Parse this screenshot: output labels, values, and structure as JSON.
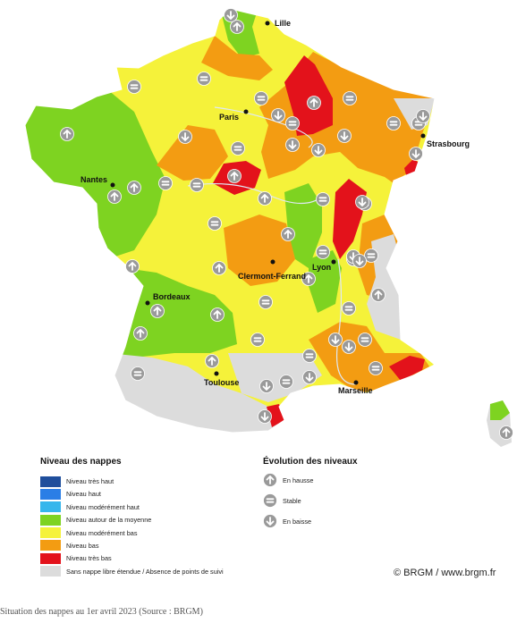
{
  "colors": {
    "tres_haut": "#1f4e9c",
    "haut": "#2b7ee6",
    "moderement_haut": "#36b6ec",
    "moyenne": "#7ed321",
    "moderement_bas": "#f5f23a",
    "bas": "#f39c12",
    "tres_bas": "#e3121b",
    "sans_nappe": "#dcdcdc",
    "arrow": "#9a9a9a"
  },
  "cities": {
    "lille": "Lille",
    "paris": "Paris",
    "strasbourg": "Strasbourg",
    "nantes": "Nantes",
    "clermont": "Clermont-Ferrand",
    "lyon": "Lyon",
    "bordeaux": "Bordeaux",
    "toulouse": "Toulouse",
    "marseille": "Marseille"
  },
  "legend": {
    "title": "Niveau des nappes",
    "items": [
      {
        "label": "Niveau très haut",
        "color": "#1f4e9c"
      },
      {
        "label": "Niveau haut",
        "color": "#2b7ee6"
      },
      {
        "label": "Niveau modérément haut",
        "color": "#36b6ec"
      },
      {
        "label": "Niveau autour de la moyenne",
        "color": "#7ed321"
      },
      {
        "label": "Niveau modérément bas",
        "color": "#f5f23a"
      },
      {
        "label": "Niveau bas",
        "color": "#f39c12"
      },
      {
        "label": "Niveau très bas",
        "color": "#e3121b"
      },
      {
        "label": "Sans nappe libre étendue / Absence de points de suivi",
        "color": "#dcdcdc"
      }
    ]
  },
  "evolution": {
    "title": "Évolution des niveaux",
    "items": [
      {
        "label": "En hausse",
        "icon": "arrow-up-icon"
      },
      {
        "label": "Stable",
        "icon": "equals-icon"
      },
      {
        "label": "En baisse",
        "icon": "arrow-down-icon"
      }
    ]
  },
  "credit": "© BRGM / www.brgm.fr",
  "caption": "Situation des nappes au 1er avril 2023 (Source : BRGM)",
  "markers": {
    "up": [
      [
        75,
        150
      ],
      [
        128,
        220
      ],
      [
        150,
        210
      ],
      [
        265,
        30
      ],
      [
        262,
        197
      ],
      [
        296,
        222
      ],
      [
        351,
        115
      ],
      [
        322,
        262
      ],
      [
        345,
        312
      ],
      [
        395,
        290
      ],
      [
        245,
        300
      ],
      [
        176,
        348
      ],
      [
        157,
        373
      ],
      [
        243,
        352
      ],
      [
        148,
        298
      ],
      [
        237,
        404
      ],
      [
        423,
        330
      ],
      [
        566,
        484
      ]
    ],
    "stable": [
      [
        150,
        97
      ],
      [
        228,
        88
      ],
      [
        292,
        110
      ],
      [
        266,
        166
      ],
      [
        185,
        205
      ],
      [
        220,
        207
      ],
      [
        327,
        138
      ],
      [
        391,
        110
      ],
      [
        440,
        138
      ],
      [
        361,
        223
      ],
      [
        408,
        228
      ],
      [
        361,
        282
      ],
      [
        154,
        418
      ],
      [
        240,
        250
      ],
      [
        297,
        338
      ],
      [
        288,
        380
      ],
      [
        415,
        286
      ],
      [
        390,
        345
      ],
      [
        408,
        380
      ],
      [
        346,
        398
      ],
      [
        320,
        427
      ],
      [
        420,
        412
      ],
      [
        468,
        138
      ]
    ],
    "down": [
      [
        258,
        17
      ],
      [
        207,
        153
      ],
      [
        311,
        129
      ],
      [
        327,
        162
      ],
      [
        385,
        152
      ],
      [
        356,
        168
      ],
      [
        473,
        130
      ],
      [
        465,
        172
      ],
      [
        405,
        226
      ],
      [
        395,
        287
      ],
      [
        402,
        292
      ],
      [
        375,
        380
      ],
      [
        298,
        432
      ],
      [
        296,
        466
      ],
      [
        346,
        422
      ],
      [
        390,
        388
      ]
    ]
  }
}
